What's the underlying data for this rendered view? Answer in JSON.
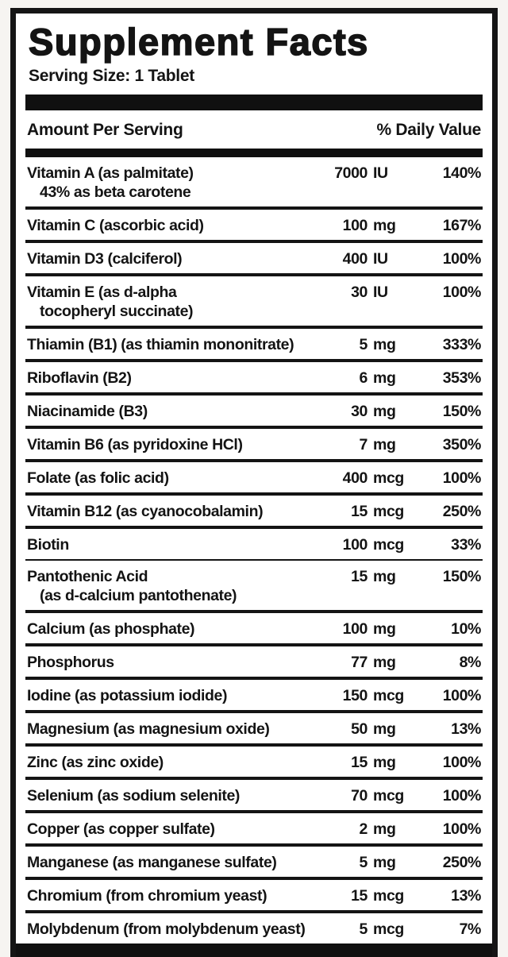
{
  "label": {
    "title": "Supplement Facts",
    "serving_size": "Serving Size: 1 Tablet",
    "header": {
      "amount_col": "Amount Per Serving",
      "dv_col": "% Daily Value"
    },
    "colors": {
      "ink": "#141414",
      "paper": "#ffffff",
      "page_background": "#f6f4f1"
    },
    "rows": [
      {
        "name": "Vitamin A (as palmitate)",
        "sub": "43% as beta carotene",
        "amount": "7000",
        "unit": "IU",
        "dv": "140%"
      },
      {
        "name": "Vitamin C (ascorbic acid)",
        "amount": "100",
        "unit": "mg",
        "dv": "167%"
      },
      {
        "name": "Vitamin D3 (calciferol)",
        "amount": "400",
        "unit": "IU",
        "dv": "100%"
      },
      {
        "name": "Vitamin E (as d-alpha",
        "sub": "tocopheryl succinate)",
        "amount": "30",
        "unit": "IU",
        "dv": "100%"
      },
      {
        "name": "Thiamin (B1) (as thiamin mononitrate)",
        "amount": "5",
        "unit": "mg",
        "dv": "333%"
      },
      {
        "name": "Riboflavin (B2)",
        "amount": "6",
        "unit": "mg",
        "dv": "353%"
      },
      {
        "name": "Niacinamide (B3)",
        "amount": "30",
        "unit": "mg",
        "dv": "150%"
      },
      {
        "name": "Vitamin B6 (as pyridoxine HCl)",
        "amount": "7",
        "unit": "mg",
        "dv": "350%"
      },
      {
        "name": "Folate (as folic acid)",
        "amount": "400",
        "unit": "mcg",
        "dv": "100%"
      },
      {
        "name": "Vitamin B12 (as cyanocobalamin)",
        "amount": "15",
        "unit": "mcg",
        "dv": "250%"
      },
      {
        "name": "Biotin",
        "amount": "100",
        "unit": "mcg",
        "dv": "33%",
        "sep": "thin"
      },
      {
        "name": "Pantothenic Acid",
        "sub": "(as d-calcium pantothenate)",
        "amount": "15",
        "unit": "mg",
        "dv": "150%"
      },
      {
        "name": "Calcium (as phosphate)",
        "amount": "100",
        "unit": "mg",
        "dv": "10%"
      },
      {
        "name": "Phosphorus",
        "amount": "77",
        "unit": "mg",
        "dv": "8%"
      },
      {
        "name": "Iodine (as potassium iodide)",
        "amount": "150",
        "unit": "mcg",
        "dv": "100%"
      },
      {
        "name": "Magnesium (as magnesium oxide)",
        "amount": "50",
        "unit": "mg",
        "dv": "13%"
      },
      {
        "name": "Zinc (as zinc oxide)",
        "amount": "15",
        "unit": "mg",
        "dv": "100%"
      },
      {
        "name": "Selenium (as sodium selenite)",
        "amount": "70",
        "unit": "mcg",
        "dv": "100%"
      },
      {
        "name": "Copper (as copper sulfate)",
        "amount": "2",
        "unit": "mg",
        "dv": "100%"
      },
      {
        "name": "Manganese (as manganese sulfate)",
        "amount": "5",
        "unit": "mg",
        "dv": "250%"
      },
      {
        "name": "Chromium (from chromium yeast)",
        "amount": "15",
        "unit": "mcg",
        "dv": "13%"
      },
      {
        "name": "Molybdenum (from molybdenum yeast)",
        "amount": "5",
        "unit": "mcg",
        "dv": "7%"
      }
    ]
  }
}
